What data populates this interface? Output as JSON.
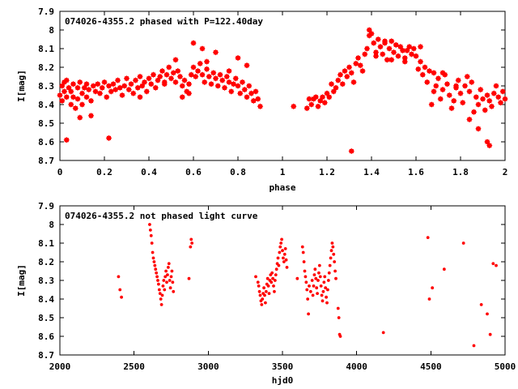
{
  "chart_data": [
    {
      "type": "scatter",
      "title": "074026-4355.2 phased with P=122.40day",
      "xlabel": "phase",
      "ylabel": "I[mag]",
      "xlim": [
        0,
        2
      ],
      "ylim": [
        8.7,
        7.9
      ],
      "y_inverted": true,
      "xticks": [
        "0",
        "0.2",
        "0.4",
        "0.6",
        "0.8",
        "1",
        "1.2",
        "1.4",
        "1.6",
        "1.8",
        "2"
      ],
      "yticks": [
        "7.9",
        "8",
        "8.1",
        "8.2",
        "8.3",
        "8.4",
        "8.5",
        "8.6",
        "8.7"
      ],
      "marker_color": "#ff0000",
      "grid": false,
      "series": [
        {
          "x": [
            0.0,
            0.01,
            0.01,
            0.02,
            0.02,
            0.03,
            0.03,
            0.04,
            0.05,
            0.05,
            0.06,
            0.06,
            0.07,
            0.08,
            0.08,
            0.09,
            0.1,
            0.1,
            0.11,
            0.12,
            0.12,
            0.13,
            0.14,
            0.15,
            0.16,
            0.17,
            0.18,
            0.19,
            0.2,
            0.21,
            0.22,
            0.23,
            0.24,
            0.25,
            0.26,
            0.27,
            0.28,
            0.29,
            0.3,
            0.31,
            0.32,
            0.33,
            0.34,
            0.35,
            0.36,
            0.37,
            0.38,
            0.39,
            0.4,
            0.41,
            0.42,
            0.43,
            0.44,
            0.45,
            0.46,
            0.47,
            0.48,
            0.49,
            0.5,
            0.51,
            0.52,
            0.53,
            0.54,
            0.55,
            0.56,
            0.57,
            0.58,
            0.59,
            0.6,
            0.61,
            0.62,
            0.63,
            0.64,
            0.65,
            0.66,
            0.67,
            0.68,
            0.69,
            0.7,
            0.71,
            0.72,
            0.73,
            0.74,
            0.75,
            0.76,
            0.77,
            0.78,
            0.79,
            0.8,
            0.81,
            0.82,
            0.83,
            0.84,
            0.85,
            0.86,
            0.87,
            0.88,
            0.89,
            0.9,
            0.03,
            0.09,
            0.22,
            0.6,
            0.64,
            0.66,
            0.58,
            0.55,
            0.8,
            0.84,
            0.14,
            0.36,
            0.47,
            0.52,
            0.7,
            0.76
          ],
          "y": [
            8.35,
            8.3,
            8.38,
            8.28,
            8.33,
            8.36,
            8.27,
            8.31,
            8.4,
            8.33,
            8.29,
            8.36,
            8.42,
            8.31,
            8.37,
            8.28,
            8.34,
            8.4,
            8.31,
            8.36,
            8.29,
            8.32,
            8.38,
            8.3,
            8.33,
            8.29,
            8.34,
            8.31,
            8.28,
            8.36,
            8.3,
            8.33,
            8.29,
            8.32,
            8.27,
            8.31,
            8.35,
            8.3,
            8.26,
            8.32,
            8.29,
            8.34,
            8.27,
            8.31,
            8.25,
            8.3,
            8.28,
            8.33,
            8.26,
            8.29,
            8.24,
            8.31,
            8.27,
            8.25,
            8.22,
            8.28,
            8.24,
            8.2,
            8.26,
            8.23,
            8.28,
            8.22,
            8.25,
            8.3,
            8.27,
            8.33,
            8.29,
            8.24,
            8.2,
            8.25,
            8.22,
            8.18,
            8.24,
            8.28,
            8.21,
            8.25,
            8.29,
            8.23,
            8.26,
            8.3,
            8.24,
            8.27,
            8.31,
            8.25,
            8.28,
            8.33,
            8.29,
            8.26,
            8.3,
            8.34,
            8.28,
            8.32,
            8.36,
            8.3,
            8.34,
            8.38,
            8.33,
            8.37,
            8.41,
            8.59,
            8.47,
            8.58,
            8.07,
            8.1,
            8.17,
            8.34,
            8.36,
            8.15,
            8.19,
            8.46,
            8.36,
            8.29,
            8.16,
            8.12,
            8.22
          ]
        },
        {
          "x": [
            1.05,
            1.11,
            1.12,
            1.13,
            1.14,
            1.15,
            1.16,
            1.17,
            1.18,
            1.19,
            1.2,
            1.21,
            1.22,
            1.23,
            1.24,
            1.25,
            1.26,
            1.27,
            1.28,
            1.29,
            1.3,
            1.31,
            1.32,
            1.33,
            1.34,
            1.35,
            1.36,
            1.37,
            1.38,
            1.39,
            1.4,
            1.41,
            1.42,
            1.43,
            1.44,
            1.45,
            1.46,
            1.47,
            1.48,
            1.49,
            1.5,
            1.51,
            1.52,
            1.53,
            1.54,
            1.55,
            1.56,
            1.57,
            1.58,
            1.59,
            1.6,
            1.61,
            1.62,
            1.63,
            1.64,
            1.65,
            1.66,
            1.67,
            1.68,
            1.69,
            1.7,
            1.71,
            1.72,
            1.73,
            1.74,
            1.75,
            1.76,
            1.77,
            1.78,
            1.79,
            1.8,
            1.81,
            1.82,
            1.83,
            1.84,
            1.85,
            1.86,
            1.87,
            1.88,
            1.89,
            1.9,
            1.91,
            1.92,
            1.93,
            1.94,
            1.95,
            1.96,
            1.97,
            1.98,
            1.99,
            2.0,
            1.31,
            1.39,
            1.42,
            1.46,
            1.49,
            1.55,
            1.62,
            1.68,
            1.72,
            1.78,
            1.84,
            1.88,
            1.92,
            1.93
          ],
          "y": [
            8.41,
            8.42,
            8.37,
            8.4,
            8.37,
            8.36,
            8.41,
            8.38,
            8.36,
            8.39,
            8.34,
            8.36,
            8.29,
            8.33,
            8.31,
            8.27,
            8.24,
            8.29,
            8.22,
            8.25,
            8.2,
            8.23,
            8.28,
            8.18,
            8.15,
            8.19,
            8.22,
            8.13,
            8.1,
            8.0,
            8.02,
            8.07,
            8.12,
            8.05,
            8.09,
            8.13,
            8.07,
            8.16,
            8.1,
            8.06,
            8.12,
            8.08,
            8.14,
            8.09,
            8.11,
            8.15,
            8.11,
            8.09,
            8.13,
            8.1,
            8.14,
            8.21,
            8.17,
            8.24,
            8.2,
            8.28,
            8.22,
            8.4,
            8.33,
            8.3,
            8.26,
            8.37,
            8.32,
            8.24,
            8.29,
            8.35,
            8.42,
            8.38,
            8.31,
            8.27,
            8.34,
            8.39,
            8.3,
            8.25,
            8.33,
            8.28,
            8.44,
            8.36,
            8.4,
            8.32,
            8.37,
            8.43,
            8.35,
            8.38,
            8.41,
            8.34,
            8.3,
            8.36,
            8.39,
            8.33,
            8.37,
            8.65,
            8.03,
            8.14,
            8.06,
            8.16,
            8.17,
            8.09,
            8.23,
            8.23,
            8.3,
            8.48,
            8.53,
            8.6,
            8.62
          ]
        }
      ]
    },
    {
      "type": "scatter",
      "title": "074026-4355.2 not phased light curve",
      "xlabel": "hjd0",
      "ylabel": "I[mag]",
      "xlim": [
        2000,
        5000
      ],
      "ylim": [
        8.7,
        7.9
      ],
      "y_inverted": true,
      "xticks": [
        "2000",
        "2500",
        "3000",
        "3500",
        "4000",
        "4500",
        "5000"
      ],
      "yticks": [
        "7.9",
        "8",
        "8.1",
        "8.2",
        "8.3",
        "8.4",
        "8.5",
        "8.6",
        "8.7"
      ],
      "marker_color": "#ff0000",
      "grid": false,
      "series": [
        {
          "x": [
            2395,
            2405,
            2415,
            2605,
            2610,
            2615,
            2620,
            2625,
            2630,
            2635,
            2640,
            2645,
            2650,
            2655,
            2660,
            2665,
            2670,
            2675,
            2680,
            2685,
            2690,
            2695,
            2700,
            2705,
            2710,
            2715,
            2720,
            2725,
            2730,
            2735,
            2740,
            2745,
            2750,
            2755,
            2760,
            2765,
            2870,
            2880,
            2885,
            2890,
            3320,
            3335,
            3340,
            3345,
            3350,
            3355,
            3360,
            3365,
            3370,
            3375,
            3380,
            3385,
            3390,
            3395,
            3400,
            3405,
            3410,
            3415,
            3420,
            3425,
            3430,
            3435,
            3440,
            3445,
            3450,
            3455,
            3460,
            3465,
            3470,
            3475,
            3480,
            3485,
            3490,
            3495,
            3500,
            3505,
            3510,
            3515,
            3520,
            3525,
            3530,
            3600,
            3635,
            3640,
            3645,
            3650,
            3655,
            3660,
            3665,
            3670,
            3675,
            3680,
            3690,
            3700,
            3705,
            3710,
            3715,
            3720,
            3725,
            3730,
            3735,
            3740,
            3745,
            3750,
            3755,
            3760,
            3765,
            3770,
            3775,
            3780,
            3785,
            3790,
            3795,
            3800,
            3805,
            3810,
            3815,
            3820,
            3825,
            3830,
            3835,
            3840,
            3845,
            3850,
            3855,
            3860,
            3875,
            3880,
            3885,
            3890,
            4180,
            4480,
            4490,
            4510,
            4590,
            4720,
            4790,
            4840,
            4880,
            4900,
            4920,
            4940
          ],
          "y": [
            8.28,
            8.35,
            8.39,
            8.0,
            8.03,
            8.06,
            8.1,
            8.15,
            8.18,
            8.2,
            8.22,
            8.24,
            8.26,
            8.28,
            8.3,
            8.32,
            8.35,
            8.37,
            8.4,
            8.43,
            8.38,
            8.33,
            8.3,
            8.35,
            8.28,
            8.25,
            8.31,
            8.27,
            8.23,
            8.21,
            8.3,
            8.34,
            8.28,
            8.25,
            8.31,
            8.36,
            8.29,
            8.12,
            8.08,
            8.1,
            8.28,
            8.31,
            8.33,
            8.36,
            8.38,
            8.41,
            8.43,
            8.4,
            8.37,
            8.34,
            8.38,
            8.42,
            8.36,
            8.32,
            8.29,
            8.33,
            8.37,
            8.3,
            8.27,
            8.31,
            8.26,
            8.29,
            8.33,
            8.36,
            8.3,
            8.27,
            8.24,
            8.21,
            8.18,
            8.22,
            8.15,
            8.12,
            8.1,
            8.08,
            8.14,
            8.18,
            8.2,
            8.16,
            8.13,
            8.19,
            8.23,
            8.29,
            8.12,
            8.15,
            8.2,
            8.25,
            8.28,
            8.31,
            8.35,
            8.4,
            8.48,
            8.33,
            8.36,
            8.3,
            8.38,
            8.33,
            8.27,
            8.24,
            8.29,
            8.34,
            8.37,
            8.3,
            8.26,
            8.22,
            8.28,
            8.33,
            8.38,
            8.41,
            8.36,
            8.31,
            8.28,
            8.34,
            8.39,
            8.42,
            8.35,
            8.3,
            8.26,
            8.22,
            8.18,
            8.14,
            8.1,
            8.12,
            8.16,
            8.2,
            8.25,
            8.29,
            8.45,
            8.5,
            8.59,
            8.6,
            8.58,
            8.07,
            8.4,
            8.34,
            8.24,
            8.1,
            8.65,
            8.43,
            8.48,
            8.59,
            8.21,
            8.22
          ]
        }
      ]
    }
  ]
}
